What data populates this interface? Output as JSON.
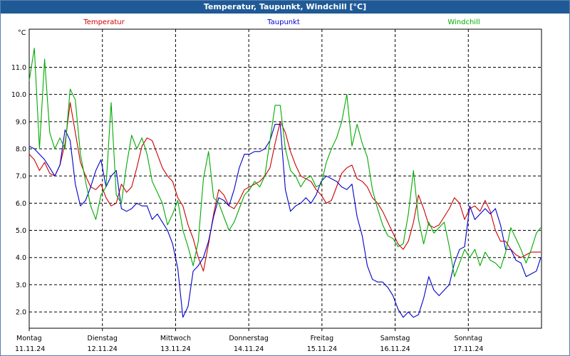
{
  "title": "Temperatur, Taupunkt, Windchill [°C]",
  "chart_data": {
    "type": "line",
    "title": "Temperatur, Taupunkt, Windchill [°C]",
    "ylabel": "°C",
    "ylim": [
      1.4,
      12.4
    ],
    "yticks": [
      2.0,
      3.0,
      4.0,
      5.0,
      6.0,
      7.0,
      8.0,
      9.0,
      10.0,
      11.0
    ],
    "yticklabels": [
      "2.0",
      "3.0",
      "4.0",
      "5.0",
      "6.0",
      "7.0",
      "8.0",
      "9.0",
      "10.0",
      "11.0"
    ],
    "xlim": [
      0,
      7.0
    ],
    "days": [
      {
        "name": "Montag",
        "date": "11.11.24"
      },
      {
        "name": "Dienstag",
        "date": "12.11.24"
      },
      {
        "name": "Mittwoch",
        "date": "13.11.24"
      },
      {
        "name": "Donnerstag",
        "date": "14.11.24"
      },
      {
        "name": "Freitag",
        "date": "15.11.24"
      },
      {
        "name": "Samstag",
        "date": "16.11.24"
      },
      {
        "name": "Sonntag",
        "date": "17.11.24"
      }
    ],
    "grid": true,
    "legend_position": "top",
    "series": [
      {
        "name": "Temperatur",
        "color": "#cc0000",
        "x": [
          0,
          0.07,
          0.14,
          0.21,
          0.28,
          0.35,
          0.42,
          0.49,
          0.56,
          0.63,
          0.7,
          0.77,
          0.84,
          0.91,
          0.98,
          1.05,
          1.12,
          1.19,
          1.26,
          1.33,
          1.4,
          1.47,
          1.54,
          1.61,
          1.68,
          1.75,
          1.82,
          1.89,
          1.96,
          2.03,
          2.1,
          2.17,
          2.24,
          2.31,
          2.38,
          2.45,
          2.52,
          2.59,
          2.66,
          2.73,
          2.8,
          2.87,
          2.94,
          3.01,
          3.08,
          3.15,
          3.22,
          3.29,
          3.36,
          3.43,
          3.5,
          3.57,
          3.64,
          3.71,
          3.78,
          3.85,
          3.92,
          3.99,
          4.06,
          4.13,
          4.2,
          4.27,
          4.34,
          4.41,
          4.48,
          4.55,
          4.62,
          4.69,
          4.76,
          4.83,
          4.9,
          4.97,
          5.04,
          5.11,
          5.18,
          5.25,
          5.32,
          5.39,
          5.46,
          5.53,
          5.6,
          5.67,
          5.74,
          5.81,
          5.88,
          5.95,
          6.02,
          6.09,
          6.16,
          6.23,
          6.3,
          6.37,
          6.44,
          6.51,
          6.58,
          6.65,
          6.72,
          6.79,
          6.86,
          6.93,
          6.99
        ],
        "values": [
          7.8,
          7.6,
          7.2,
          7.5,
          7.1,
          7.0,
          7.4,
          8.2,
          9.7,
          8.6,
          7.5,
          7.0,
          6.6,
          6.5,
          6.7,
          6.2,
          5.9,
          6.0,
          6.7,
          6.4,
          6.6,
          7.3,
          8.1,
          8.4,
          8.3,
          7.8,
          7.3,
          7.0,
          6.8,
          6.2,
          5.9,
          5.2,
          4.7,
          4.0,
          3.5,
          4.5,
          5.6,
          6.5,
          6.3,
          5.9,
          5.8,
          6.1,
          6.5,
          6.6,
          6.7,
          6.8,
          7.0,
          7.3,
          8.2,
          9.0,
          8.6,
          7.9,
          7.4,
          7.0,
          6.9,
          6.8,
          6.5,
          6.3,
          6.0,
          6.1,
          6.6,
          7.1,
          7.3,
          7.4,
          6.9,
          6.8,
          6.6,
          6.2,
          6.0,
          5.7,
          5.3,
          4.9,
          4.5,
          4.3,
          4.6,
          5.3,
          6.3,
          5.8,
          5.2,
          5.1,
          5.2,
          5.5,
          5.8,
          6.2,
          6.0,
          5.4,
          5.8,
          5.9,
          5.7,
          6.1,
          5.7,
          5.0,
          4.6,
          4.6,
          4.3,
          4.1,
          4.0,
          4.1,
          4.2,
          4.2,
          4.2
        ]
      },
      {
        "name": "Taupunkt",
        "color": "#0000cc",
        "x": [
          0,
          0.07,
          0.14,
          0.21,
          0.28,
          0.35,
          0.42,
          0.49,
          0.56,
          0.63,
          0.7,
          0.77,
          0.84,
          0.91,
          0.98,
          1.05,
          1.12,
          1.19,
          1.26,
          1.33,
          1.4,
          1.47,
          1.54,
          1.61,
          1.68,
          1.75,
          1.82,
          1.89,
          1.96,
          2.03,
          2.1,
          2.17,
          2.24,
          2.31,
          2.38,
          2.45,
          2.52,
          2.59,
          2.66,
          2.73,
          2.8,
          2.87,
          2.94,
          3.01,
          3.08,
          3.15,
          3.22,
          3.29,
          3.36,
          3.43,
          3.5,
          3.57,
          3.64,
          3.71,
          3.78,
          3.85,
          3.92,
          3.99,
          4.06,
          4.13,
          4.2,
          4.27,
          4.34,
          4.41,
          4.48,
          4.55,
          4.62,
          4.69,
          4.76,
          4.83,
          4.9,
          4.97,
          5.04,
          5.11,
          5.18,
          5.25,
          5.32,
          5.39,
          5.46,
          5.53,
          5.6,
          5.67,
          5.74,
          5.81,
          5.88,
          5.95,
          6.02,
          6.09,
          6.16,
          6.23,
          6.3,
          6.37,
          6.44,
          6.51,
          6.58,
          6.65,
          6.72,
          6.79,
          6.86,
          6.93,
          6.99
        ],
        "values": [
          8.1,
          8.0,
          7.8,
          7.6,
          7.3,
          7.0,
          7.4,
          8.7,
          8.3,
          6.7,
          5.9,
          6.1,
          6.6,
          7.2,
          7.6,
          6.6,
          7.0,
          7.2,
          5.8,
          5.7,
          5.8,
          6.0,
          5.9,
          5.9,
          5.4,
          5.6,
          5.3,
          5.0,
          4.5,
          3.6,
          1.8,
          2.2,
          3.5,
          3.7,
          4.0,
          4.6,
          5.5,
          6.2,
          6.1,
          5.9,
          6.5,
          7.3,
          7.8,
          7.8,
          7.9,
          7.9,
          8.0,
          8.3,
          8.9,
          8.9,
          6.5,
          5.7,
          5.9,
          6.0,
          6.2,
          6.0,
          6.3,
          6.8,
          7.0,
          6.9,
          6.8,
          6.6,
          6.5,
          6.7,
          5.5,
          4.8,
          3.7,
          3.2,
          3.1,
          3.1,
          2.9,
          2.6,
          2.1,
          1.8,
          2.0,
          1.8,
          1.9,
          2.5,
          3.3,
          2.8,
          2.6,
          2.8,
          3.0,
          3.8,
          4.3,
          4.4,
          5.9,
          5.4,
          5.6,
          5.8,
          5.6,
          5.8,
          5.2,
          4.3,
          4.3,
          3.9,
          3.8,
          3.3,
          3.4,
          3.5,
          4.0
        ]
      },
      {
        "name": "Windchill",
        "color": "#00aa00",
        "x": [
          0,
          0.07,
          0.14,
          0.21,
          0.28,
          0.35,
          0.42,
          0.49,
          0.56,
          0.63,
          0.7,
          0.77,
          0.84,
          0.91,
          0.98,
          1.05,
          1.12,
          1.19,
          1.26,
          1.33,
          1.4,
          1.47,
          1.54,
          1.61,
          1.68,
          1.75,
          1.82,
          1.89,
          1.96,
          2.03,
          2.1,
          2.17,
          2.24,
          2.31,
          2.38,
          2.45,
          2.52,
          2.59,
          2.66,
          2.73,
          2.8,
          2.87,
          2.94,
          3.01,
          3.08,
          3.15,
          3.22,
          3.29,
          3.36,
          3.43,
          3.5,
          3.57,
          3.64,
          3.71,
          3.78,
          3.85,
          3.92,
          3.99,
          4.06,
          4.13,
          4.2,
          4.27,
          4.34,
          4.41,
          4.48,
          4.55,
          4.62,
          4.69,
          4.76,
          4.83,
          4.9,
          4.97,
          5.04,
          5.11,
          5.18,
          5.25,
          5.32,
          5.39,
          5.46,
          5.53,
          5.6,
          5.67,
          5.74,
          5.81,
          5.88,
          5.95,
          6.02,
          6.09,
          6.16,
          6.23,
          6.3,
          6.37,
          6.44,
          6.51,
          6.58,
          6.65,
          6.72,
          6.79,
          6.86,
          6.93,
          6.99
        ],
        "values": [
          10.5,
          11.7,
          8.0,
          11.3,
          8.6,
          8.0,
          8.4,
          8.0,
          10.2,
          9.8,
          7.8,
          6.8,
          5.9,
          5.4,
          6.3,
          6.6,
          9.7,
          6.3,
          6.0,
          7.4,
          8.5,
          8.0,
          8.4,
          7.8,
          6.8,
          6.4,
          6.0,
          5.2,
          5.6,
          6.1,
          5.0,
          4.4,
          3.7,
          4.6,
          6.9,
          7.9,
          6.2,
          6.0,
          5.5,
          5.0,
          5.3,
          5.8,
          6.3,
          6.5,
          6.8,
          6.6,
          7.0,
          8.3,
          9.6,
          9.6,
          8.0,
          7.2,
          7.0,
          6.6,
          6.9,
          7.0,
          6.6,
          6.7,
          7.5,
          8.0,
          8.4,
          9.0,
          10.0,
          8.1,
          8.9,
          8.2,
          7.7,
          6.5,
          5.8,
          5.2,
          4.8,
          4.7,
          4.4,
          4.5,
          5.6,
          7.2,
          5.4,
          4.5,
          5.3,
          4.9,
          5.1,
          5.3,
          4.4,
          3.3,
          3.8,
          4.3,
          4.0,
          4.3,
          3.7,
          4.2,
          3.9,
          3.8,
          3.6,
          4.2,
          5.1,
          4.7,
          4.3,
          3.8,
          4.3,
          4.9,
          5.1
        ]
      }
    ]
  }
}
